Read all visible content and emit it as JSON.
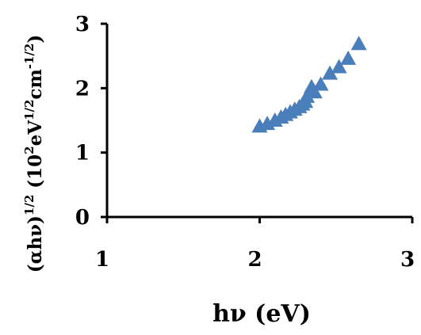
{
  "chart_data": {
    "type": "scatter",
    "title": "",
    "xlabel": "hν (eV)",
    "ylabel": {
      "prefix": "(αhν)",
      "prefix_sup": "1/2",
      "unit_open": " (10",
      "unit_sup1": "2",
      "unit_mid": "eV",
      "unit_sup2": "1/2",
      "unit_end": "cm",
      "unit_sup3": "-1/2",
      "unit_close": ")"
    },
    "xlim": [
      1,
      3
    ],
    "ylim": [
      0,
      3
    ],
    "xticks": [
      "1",
      "2",
      "3"
    ],
    "yticks": [
      "0",
      "1",
      "2",
      "3"
    ],
    "grid": false,
    "legend": "none",
    "marker": "triangle",
    "color": "#4a7ebb",
    "series": [
      {
        "x": [
          2.0,
          2.05,
          2.1,
          2.14,
          2.17,
          2.2,
          2.23,
          2.26,
          2.28,
          2.3,
          2.31,
          2.33,
          2.34,
          2.36,
          2.4,
          2.46,
          2.52,
          2.58,
          2.65
        ],
        "y": [
          1.4,
          1.44,
          1.49,
          1.54,
          1.58,
          1.62,
          1.66,
          1.7,
          1.74,
          1.78,
          1.86,
          1.95,
          2.01,
          1.93,
          2.05,
          2.22,
          2.32,
          2.45,
          2.68
        ]
      }
    ]
  }
}
